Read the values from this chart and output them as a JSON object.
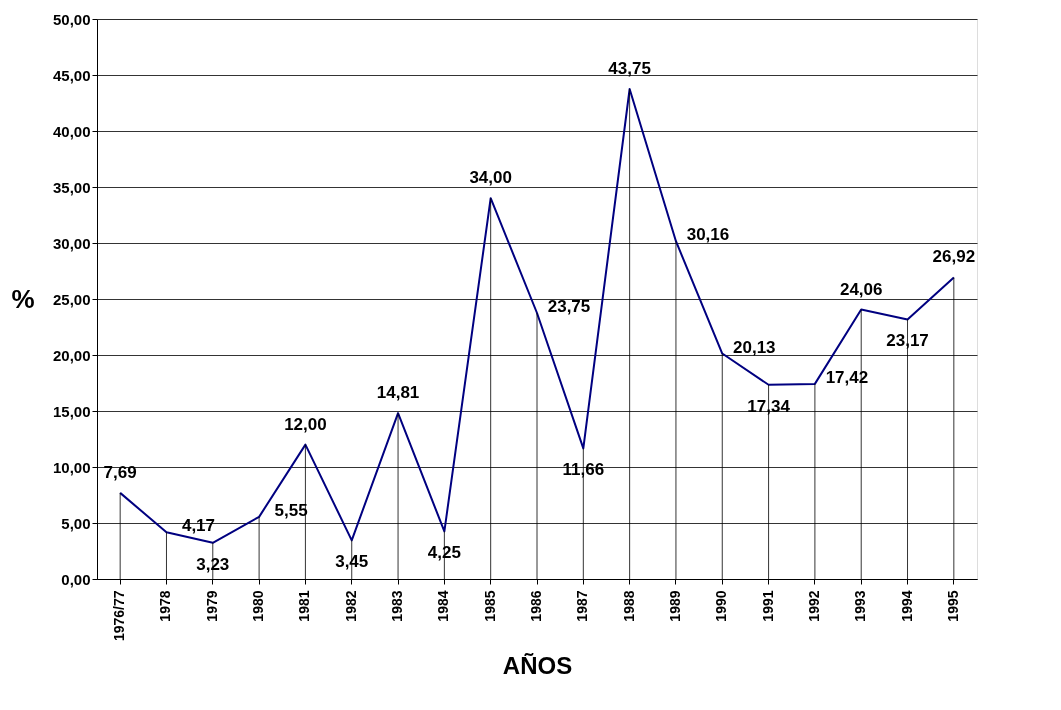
{
  "chart_data": {
    "type": "line",
    "xlabel": "AÑOS",
    "ylabel": "%",
    "categories": [
      "1976/77",
      "1978",
      "1979",
      "1980",
      "1981",
      "1982",
      "1983",
      "1984",
      "1985",
      "1986",
      "1987",
      "1988",
      "1989",
      "1990",
      "1991",
      "1992",
      "1993",
      "1994",
      "1995"
    ],
    "series": [
      {
        "color": "#000080",
        "values": [
          7.69,
          4.17,
          3.23,
          5.55,
          12.0,
          3.45,
          14.81,
          4.25,
          34.0,
          23.75,
          11.66,
          43.75,
          30.16,
          20.13,
          17.34,
          17.42,
          24.06,
          23.17,
          26.92
        ],
        "value_labels": [
          "7,69",
          "4,17",
          "3,23",
          "5,55",
          "12,00",
          "3,45",
          "14,81",
          "4,25",
          "34,00",
          "23,75",
          "11,66",
          "43,75",
          "30,16",
          "20,13",
          "17,34",
          "17,42",
          "24,06",
          "23,17",
          "26,92"
        ]
      }
    ],
    "ylim": [
      0,
      50
    ],
    "yticks": [
      {
        "value": 0,
        "label": "0,00"
      },
      {
        "value": 5,
        "label": "5,00"
      },
      {
        "value": 10,
        "label": "10,00"
      },
      {
        "value": 15,
        "label": "15,00"
      },
      {
        "value": 20,
        "label": "20,00"
      },
      {
        "value": 25,
        "label": "25,00"
      },
      {
        "value": 30,
        "label": "30,00"
      },
      {
        "value": 35,
        "label": "35,00"
      },
      {
        "value": 40,
        "label": "40,00"
      },
      {
        "value": 45,
        "label": "45,00"
      },
      {
        "value": 50,
        "label": "50,00"
      }
    ],
    "grid": true,
    "legend": false,
    "line_style": "solid"
  }
}
